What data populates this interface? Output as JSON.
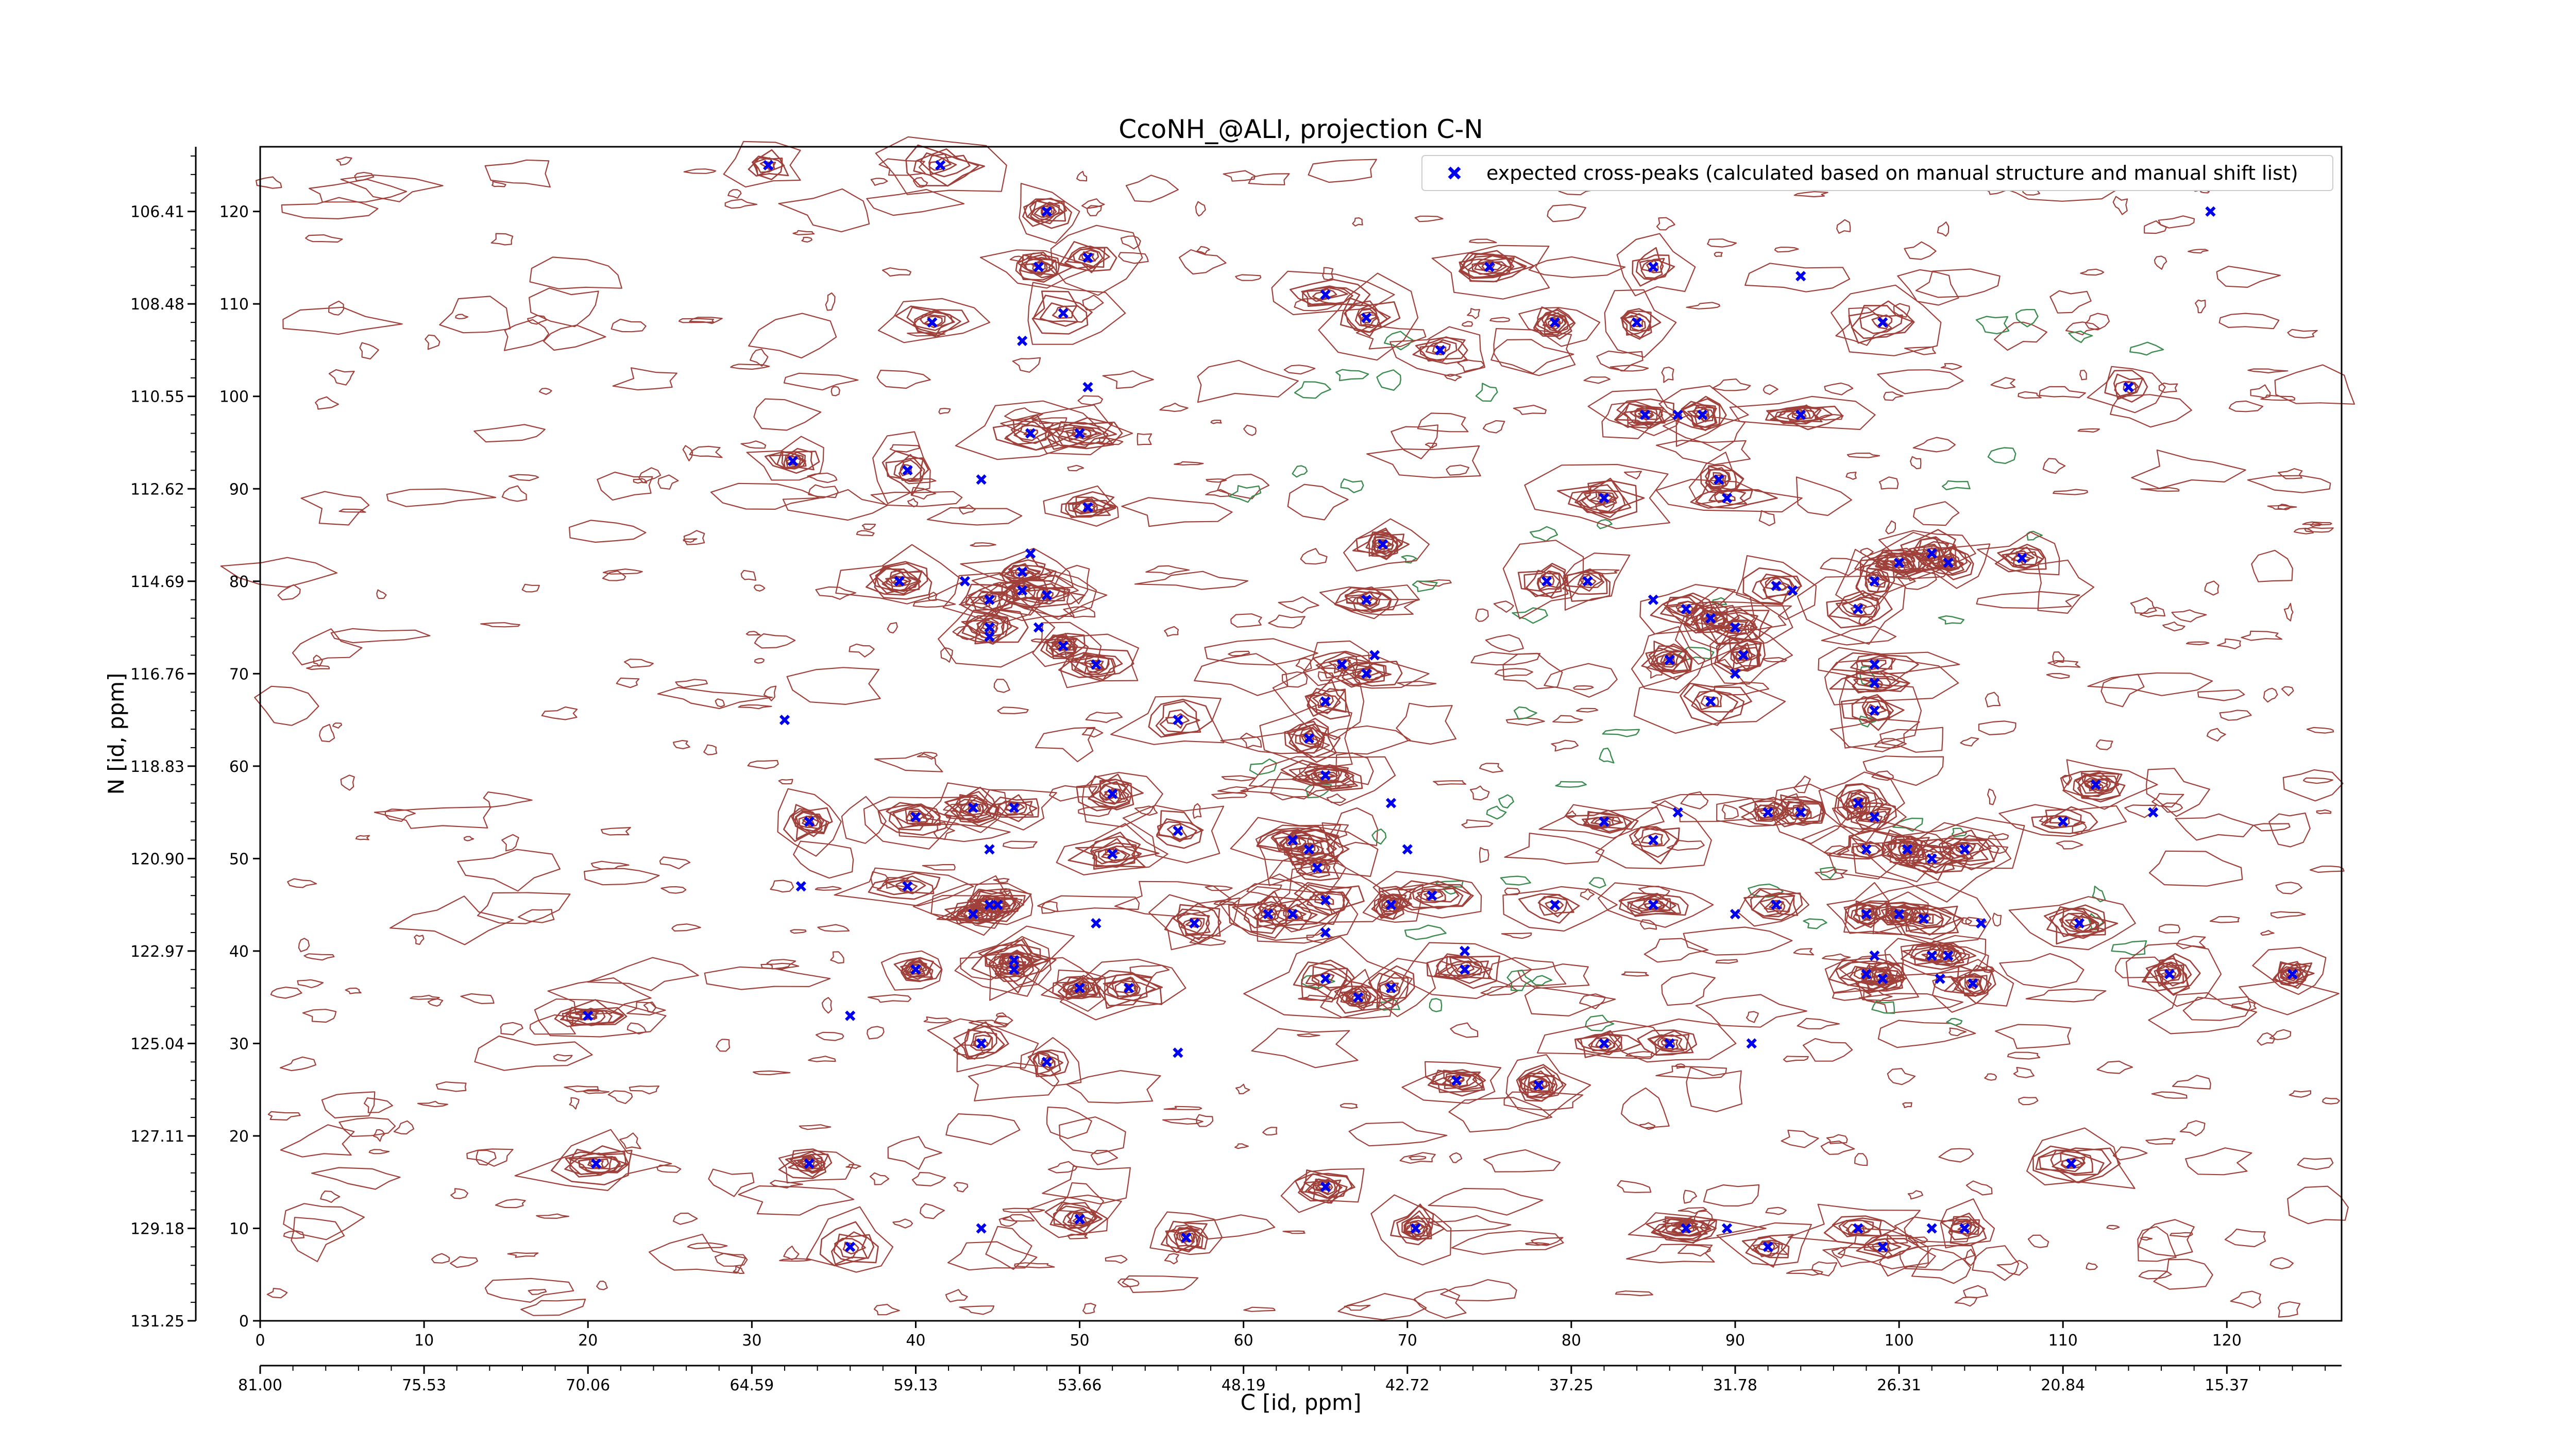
{
  "chart_data": {
    "type": "scatter",
    "title": "CcoNH_@ALI, projection C-N",
    "xlabel": "C [id, ppm]",
    "ylabel": "N [id, ppm]",
    "xlim": [
      0,
      127
    ],
    "ylim": [
      0,
      127
    ],
    "x_ticks": [
      0,
      10,
      20,
      30,
      40,
      50,
      60,
      70,
      80,
      90,
      100,
      110,
      120
    ],
    "y_ticks": [
      0,
      10,
      20,
      30,
      40,
      50,
      60,
      70,
      80,
      90,
      100,
      110,
      120
    ],
    "x_secondary_labels": [
      "81.00",
      "75.53",
      "70.06",
      "64.59",
      "59.13",
      "53.66",
      "48.19",
      "42.72",
      "37.25",
      "31.78",
      "26.31",
      "20.84",
      "15.37"
    ],
    "y_secondary_labels": [
      "131.25",
      "129.18",
      "127.11",
      "125.04",
      "122.97",
      "120.90",
      "118.83",
      "116.76",
      "114.69",
      "112.62",
      "110.55",
      "108.48",
      "106.41"
    ],
    "grid": false,
    "legend_position": "top-right",
    "colors": {
      "positive_contour": "#a0403a",
      "negative_contour": "#3c8c50",
      "peak_marker": "#0000ee"
    },
    "series": [
      {
        "name": "expected cross-peaks (calculated based on manual structure and manual shift list)",
        "marker": "x",
        "points": [
          [
            31,
            125
          ],
          [
            41.5,
            125
          ],
          [
            48,
            120
          ],
          [
            119,
            120
          ],
          [
            47.5,
            114
          ],
          [
            50.5,
            115
          ],
          [
            75,
            114
          ],
          [
            85,
            114
          ],
          [
            94,
            113
          ],
          [
            65,
            111
          ],
          [
            67.5,
            108.5
          ],
          [
            49,
            109
          ],
          [
            41,
            108
          ],
          [
            46.5,
            106
          ],
          [
            72,
            105
          ],
          [
            79,
            108
          ],
          [
            84,
            108
          ],
          [
            99,
            108
          ],
          [
            50.5,
            101
          ],
          [
            47,
            96
          ],
          [
            50,
            96
          ],
          [
            114,
            101
          ],
          [
            84.5,
            98
          ],
          [
            86.5,
            98
          ],
          [
            88,
            98
          ],
          [
            94,
            98
          ],
          [
            32.5,
            93
          ],
          [
            39.5,
            92
          ],
          [
            44,
            91
          ],
          [
            89,
            91
          ],
          [
            50.5,
            88
          ],
          [
            82,
            89
          ],
          [
            89.5,
            89
          ],
          [
            47,
            83
          ],
          [
            68.5,
            84
          ],
          [
            102,
            83
          ],
          [
            107.5,
            82.5
          ],
          [
            39,
            80
          ],
          [
            43,
            80
          ],
          [
            44.5,
            78
          ],
          [
            46.5,
            81
          ],
          [
            46.5,
            79
          ],
          [
            44.5,
            75
          ],
          [
            47.5,
            75
          ],
          [
            48,
            78.5
          ],
          [
            67.5,
            78
          ],
          [
            78.5,
            80
          ],
          [
            81,
            80
          ],
          [
            85,
            78
          ],
          [
            87,
            77
          ],
          [
            88.5,
            76
          ],
          [
            90,
            75
          ],
          [
            92.5,
            79.5
          ],
          [
            93.5,
            79
          ],
          [
            97.5,
            77
          ],
          [
            98.5,
            80
          ],
          [
            100,
            82
          ],
          [
            103,
            82
          ],
          [
            44.5,
            74
          ],
          [
            49,
            73
          ],
          [
            51,
            71
          ],
          [
            86,
            71.5
          ],
          [
            90.5,
            72
          ],
          [
            68,
            72
          ],
          [
            67.5,
            70
          ],
          [
            66,
            71
          ],
          [
            65,
            67
          ],
          [
            64,
            63
          ],
          [
            90,
            70
          ],
          [
            88.5,
            67
          ],
          [
            98.5,
            71
          ],
          [
            98.5,
            69
          ],
          [
            98.5,
            66
          ],
          [
            32,
            65
          ],
          [
            56,
            65
          ],
          [
            65,
            59
          ],
          [
            52,
            57
          ],
          [
            56,
            53
          ],
          [
            86.5,
            55
          ],
          [
            97.5,
            56
          ],
          [
            98.5,
            54.5
          ],
          [
            110,
            54
          ],
          [
            112,
            58
          ],
          [
            115.5,
            55
          ],
          [
            33.5,
            54
          ],
          [
            40,
            54.5
          ],
          [
            43.5,
            55.5
          ],
          [
            46,
            55.5
          ],
          [
            69,
            56
          ],
          [
            82,
            54
          ],
          [
            85,
            52
          ],
          [
            94,
            55
          ],
          [
            92,
            55
          ],
          [
            44.5,
            51
          ],
          [
            52,
            50.5
          ],
          [
            63,
            52
          ],
          [
            64,
            51
          ],
          [
            64.5,
            49
          ],
          [
            70,
            51
          ],
          [
            98,
            51
          ],
          [
            100.5,
            51
          ],
          [
            102,
            50
          ],
          [
            104,
            51
          ],
          [
            33,
            47
          ],
          [
            39.5,
            47
          ],
          [
            44.5,
            45
          ],
          [
            43.5,
            44
          ],
          [
            45,
            45
          ],
          [
            51,
            43
          ],
          [
            57,
            43
          ],
          [
            61.5,
            44
          ],
          [
            65,
            45.5
          ],
          [
            63,
            44
          ],
          [
            65,
            42
          ],
          [
            69,
            45
          ],
          [
            71.5,
            46
          ],
          [
            79,
            45
          ],
          [
            85,
            45
          ],
          [
            90,
            44
          ],
          [
            92.5,
            45
          ],
          [
            98,
            44
          ],
          [
            100,
            44
          ],
          [
            101.5,
            43.5
          ],
          [
            105,
            43
          ],
          [
            111,
            43
          ],
          [
            46,
            39
          ],
          [
            40,
            38
          ],
          [
            46,
            38
          ],
          [
            73.5,
            40
          ],
          [
            73.5,
            38
          ],
          [
            65,
            37
          ],
          [
            67,
            35
          ],
          [
            69,
            36
          ],
          [
            98.5,
            39.5
          ],
          [
            98,
            37.5
          ],
          [
            99,
            37
          ],
          [
            102,
            39.5
          ],
          [
            103,
            39.5
          ],
          [
            102.5,
            37
          ],
          [
            104.5,
            36.5
          ],
          [
            116.5,
            37.5
          ],
          [
            124,
            37.5
          ],
          [
            20,
            33
          ],
          [
            36,
            33
          ],
          [
            50,
            36
          ],
          [
            53,
            36
          ],
          [
            44,
            30
          ],
          [
            48,
            28
          ],
          [
            56,
            29
          ],
          [
            73,
            26
          ],
          [
            78,
            25.5
          ],
          [
            82,
            30
          ],
          [
            86,
            30
          ],
          [
            91,
            30
          ],
          [
            20.5,
            17
          ],
          [
            33.5,
            17
          ],
          [
            110.5,
            17
          ],
          [
            65,
            14.5
          ],
          [
            44,
            10
          ],
          [
            50,
            11
          ],
          [
            56.5,
            9
          ],
          [
            70.5,
            10
          ],
          [
            87,
            10
          ],
          [
            89.5,
            10
          ],
          [
            36,
            8
          ],
          [
            92,
            8
          ],
          [
            97.5,
            10
          ],
          [
            99,
            8
          ],
          [
            102,
            10
          ],
          [
            104,
            10
          ]
        ]
      }
    ],
    "annotations": [
      "positive contour peaks (brown) around each cross-peak",
      "negative contour peaks (green) scattered in centre region"
    ]
  }
}
